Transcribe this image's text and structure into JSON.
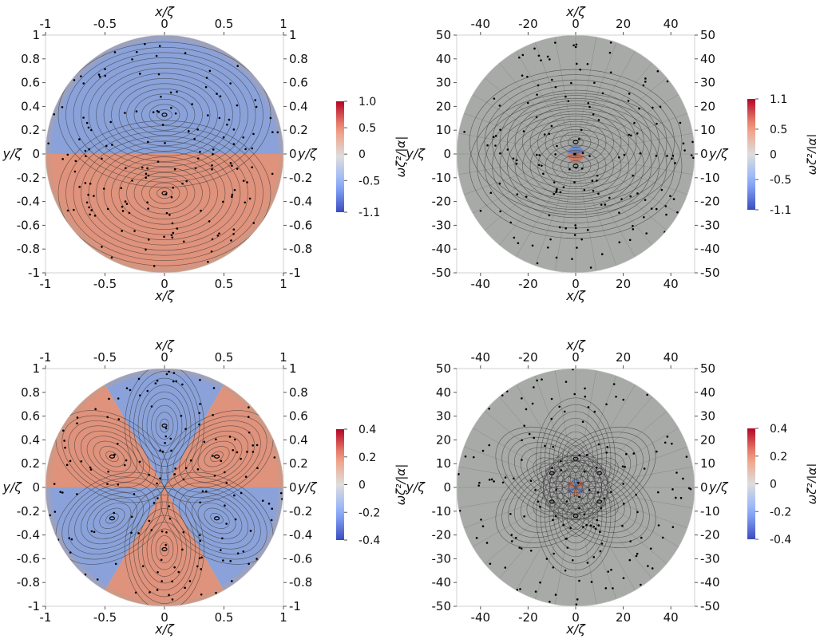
{
  "chart_data": [
    {
      "type": "heatmap",
      "panel": "top-left",
      "xlabel": "x/ζ",
      "ylabel": "y/ζ",
      "xlim": [
        -1,
        1
      ],
      "ylim": [
        -1,
        1
      ],
      "xticks": [
        "-1",
        "-0.5",
        "0",
        "0.5",
        "1"
      ],
      "yticks": [
        "1",
        "0.8",
        "0.6",
        "0.4",
        "0.2",
        "0",
        "-0.2",
        "-0.4",
        "-0.6",
        "-0.8",
        "-1"
      ],
      "colorbar": {
        "label": "ωζ²/|α|",
        "range": [
          -1.1,
          1.0
        ],
        "ticks": [
          "1.0",
          "0.5",
          "0",
          "-0.5",
          "-1.1"
        ]
      },
      "field": {
        "symmetry": "dipole",
        "lobes": 2,
        "center_vortices": [
          [
            0,
            0.33
          ],
          [
            0,
            -0.33
          ]
        ],
        "top_value": "negative"
      },
      "grid": false,
      "legend": "right"
    },
    {
      "type": "heatmap",
      "panel": "top-right",
      "xlabel": "x/ζ",
      "ylabel": "y/ζ",
      "xlim": [
        -50,
        50
      ],
      "ylim": [
        -50,
        50
      ],
      "xticks": [
        "-40",
        "-20",
        "0",
        "20",
        "40"
      ],
      "yticks": [
        "50",
        "40",
        "30",
        "20",
        "10",
        "0",
        "-10",
        "-20",
        "-30",
        "-40",
        "-50"
      ],
      "colorbar": {
        "label": "ωζ²/|α|",
        "range": [
          -1.1,
          1.1
        ],
        "ticks": [
          "1.1",
          "0.5",
          "0",
          "-0.5",
          "-1.1"
        ]
      },
      "field": {
        "symmetry": "dipole",
        "lobes": 2,
        "center_vortices": [
          [
            0,
            5
          ],
          [
            0,
            -5
          ]
        ],
        "top_value": "negative"
      },
      "grid": false,
      "legend": "right"
    },
    {
      "type": "heatmap",
      "panel": "bottom-left",
      "xlabel": "x/ζ",
      "ylabel": "y/ζ",
      "xlim": [
        -1,
        1
      ],
      "ylim": [
        -1,
        1
      ],
      "xticks": [
        "-1",
        "-0.5",
        "0",
        "0.5",
        "1"
      ],
      "yticks": [
        "1",
        "0.8",
        "0.6",
        "0.4",
        "0.2",
        "0",
        "-0.2",
        "-0.4",
        "-0.6",
        "-0.8",
        "-1"
      ],
      "colorbar": {
        "label": "ωζ²/|α|",
        "range": [
          -0.4,
          0.4
        ],
        "ticks": [
          "0.4",
          "0.2",
          "0",
          "-0.2",
          "-0.4"
        ]
      },
      "field": {
        "symmetry": "hexapole",
        "lobes": 6,
        "center_vortices": [
          [
            0,
            0.52
          ],
          [
            0.44,
            0.26
          ],
          [
            0.44,
            -0.26
          ],
          [
            0,
            -0.52
          ],
          [
            -0.44,
            -0.26
          ],
          [
            -0.44,
            0.26
          ]
        ],
        "top_value": "negative"
      },
      "grid": false,
      "legend": "right"
    },
    {
      "type": "heatmap",
      "panel": "bottom-right",
      "xlabel": "x/ζ",
      "ylabel": "y/ζ",
      "xlim": [
        -50,
        50
      ],
      "ylim": [
        -50,
        50
      ],
      "xticks": [
        "-40",
        "-20",
        "0",
        "20",
        "40"
      ],
      "yticks": [
        "50",
        "40",
        "30",
        "20",
        "10",
        "0",
        "-10",
        "-20",
        "-30",
        "-40",
        "-50"
      ],
      "colorbar": {
        "label": "ωζ²/|α|",
        "range": [
          -0.4,
          0.4
        ],
        "ticks": [
          "0.4",
          "0.2",
          "0",
          "-0.2",
          "-0.4"
        ]
      },
      "field": {
        "symmetry": "hexapole",
        "lobes": 6,
        "center_vortices": [
          [
            0,
            12
          ],
          [
            10,
            6
          ],
          [
            10,
            -6
          ],
          [
            0,
            -12
          ],
          [
            -10,
            -6
          ],
          [
            -10,
            6
          ]
        ],
        "top_value": "negative"
      },
      "grid": false,
      "legend": "right"
    }
  ]
}
